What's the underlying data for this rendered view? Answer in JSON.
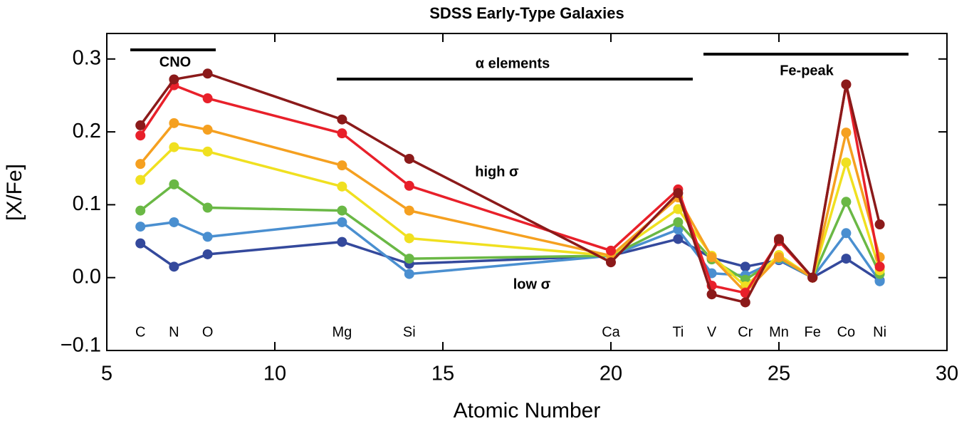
{
  "chart_data": {
    "type": "line",
    "title": "SDSS Early-Type Galaxies",
    "x_label": "Atomic Number",
    "y_label": "[X/Fe]",
    "x": [
      6,
      7,
      8,
      12,
      14,
      20,
      22,
      23,
      24,
      25,
      26,
      27,
      28
    ],
    "element_labels": [
      "C",
      "N",
      "O",
      "Mg",
      "Si",
      "Ca",
      "Ti",
      "V",
      "Cr",
      "Mn",
      "Fe",
      "Co",
      "Ni"
    ],
    "series": [
      {
        "color": "#34499c",
        "values": [
          0.047,
          0.015,
          0.032,
          0.049,
          0.019,
          0.03,
          0.053,
          0.027,
          0.015,
          0.024,
          0,
          0.026,
          -0.004
        ]
      },
      {
        "color": "#4a8fd0",
        "values": [
          0.07,
          0.076,
          0.056,
          0.076,
          0.005,
          0.03,
          0.066,
          0.006,
          0.003,
          0.025,
          0,
          0.061,
          -0.005
        ]
      },
      {
        "color": "#6ab845",
        "values": [
          0.092,
          0.128,
          0.096,
          0.092,
          0.026,
          0.03,
          0.076,
          0.025,
          -0.003,
          0.027,
          0,
          0.104,
          0.005
        ]
      },
      {
        "color": "#f0e020",
        "values": [
          0.134,
          0.179,
          0.173,
          0.125,
          0.054,
          0.03,
          0.094,
          0.03,
          -0.012,
          0.031,
          0,
          0.158,
          0.01
        ]
      },
      {
        "color": "#f5a020",
        "values": [
          0.156,
          0.212,
          0.203,
          0.154,
          0.092,
          0.03,
          0.11,
          0.028,
          -0.02,
          0.028,
          0,
          0.199,
          0.028
        ]
      },
      {
        "color": "#e8202a",
        "values": [
          0.195,
          0.264,
          0.246,
          0.198,
          0.126,
          0.037,
          0.121,
          -0.011,
          -0.021,
          0.05,
          0,
          0.265,
          0.015
        ]
      },
      {
        "color": "#8b1a1a",
        "values": [
          0.209,
          0.272,
          0.28,
          0.217,
          0.163,
          0.021,
          0.116,
          -0.023,
          -0.034,
          0.053,
          0,
          0.265,
          0.073
        ]
      }
    ],
    "xlim": [
      5,
      30
    ],
    "xticks": [
      5,
      10,
      15,
      20,
      25,
      30
    ],
    "ylim": [
      -0.1,
      0.335
    ],
    "yticks": [
      {
        "value": -0.1,
        "label": "−0.1"
      },
      {
        "value": 0,
        "label": "0.0"
      },
      0.1,
      0.2,
      0.3
    ],
    "annotations": [
      {
        "text": "CNO",
        "color": "#1f5e2a"
      },
      {
        "text": "α elements",
        "color": "#34499c"
      },
      {
        "text": "Fe-peak",
        "color": "#c8482a"
      },
      {
        "text": "high σ",
        "color": "#a51c1c"
      },
      {
        "text": "low σ",
        "color": "#3a5fb0"
      }
    ]
  }
}
